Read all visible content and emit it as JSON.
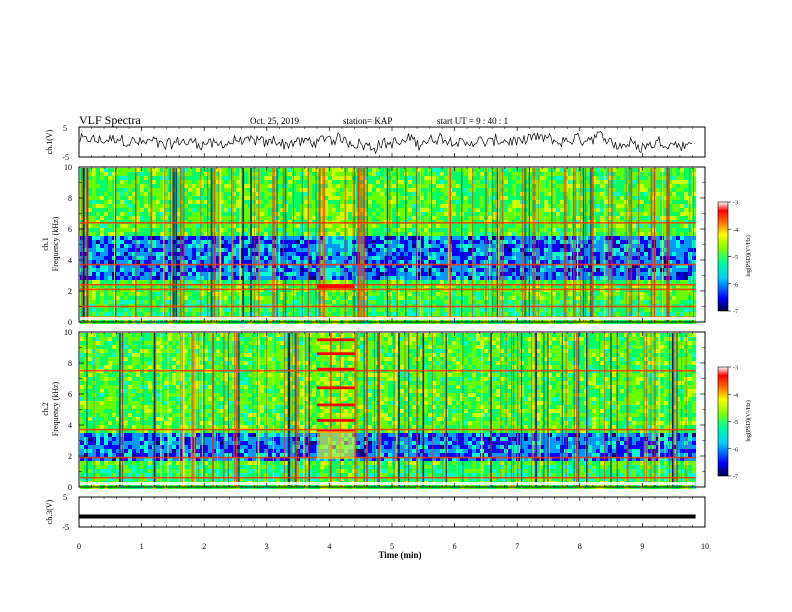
{
  "header": {
    "title": "VLF Spectra",
    "date": "Oct. 25, 2019",
    "station": "station= KAP",
    "start": "start  UT =   9 : 40 : 1"
  },
  "chart_data": {
    "type": "heatmap",
    "title": "VLF Spectra",
    "xlabel": "Time  (min)",
    "xlim": [
      0,
      10
    ],
    "xticks": [
      "0",
      "1",
      "2",
      "3",
      "4",
      "5",
      "6",
      "7",
      "8",
      "9",
      "10"
    ],
    "panels": [
      {
        "id": "ch1-waveform",
        "kind": "line",
        "ylabel": "ch.1(V)",
        "ylim": [
          -5,
          5
        ],
        "yticks": [
          "5",
          "-5"
        ],
        "description_level": 0.7,
        "amplitude": 1.8
      },
      {
        "id": "ch1-spectrogram",
        "kind": "spectrogram",
        "ylabel_top": "ch.1",
        "ylabel": "Frequency  (kHz)",
        "ylim": [
          0,
          10
        ],
        "yticks": [
          "0",
          "2",
          "4",
          "6",
          "8",
          "10"
        ],
        "tones_khz": [
          0.3,
          1.0,
          2.1,
          2.4,
          3.7,
          6.4
        ],
        "low_band_khz": [
          2.8,
          5.6
        ],
        "event_min": [
          3.8,
          4.4
        ],
        "data_end_min": 9.85,
        "colorbar": {
          "label": "log(PSD)(V²/Hz)",
          "range": [
            -7,
            -3
          ],
          "ticks": [
            "-3",
            "-4",
            "-5",
            "-6",
            "-7"
          ]
        }
      },
      {
        "id": "ch2-spectrogram",
        "kind": "spectrogram",
        "ylabel_top": "ch.2",
        "ylabel": "Frequency  (kHz)",
        "ylim": [
          0,
          10
        ],
        "yticks": [
          "0",
          "2",
          "4",
          "6",
          "8",
          "10"
        ],
        "tones_khz": [
          0.6,
          1.9,
          3.7,
          7.5
        ],
        "low_band_khz": [
          1.8,
          3.6
        ],
        "event_min": [
          3.8,
          4.4
        ],
        "event_tones_khz": [
          3.6,
          4.3,
          5.3,
          6.4,
          7.6,
          8.6,
          9.5
        ],
        "data_end_min": 9.85,
        "colorbar": {
          "label": "log(PSD)(V²/Hz)",
          "range": [
            -7,
            -3
          ],
          "ticks": [
            "-3",
            "-4",
            "-5",
            "-6",
            "-7"
          ]
        }
      },
      {
        "id": "ch3-waveform",
        "kind": "line",
        "ylabel": "ch.3(V)",
        "ylim": [
          -5,
          5
        ],
        "yticks": [
          "5",
          "-5"
        ],
        "level": -1.5,
        "data_end_min": 9.85
      }
    ],
    "colors": {
      "colormap": [
        "#000066",
        "#0000ff",
        "#00ccff",
        "#00ff99",
        "#66ff00",
        "#ffff00",
        "#ff6600",
        "#ff0000",
        "#ffffff"
      ]
    }
  }
}
